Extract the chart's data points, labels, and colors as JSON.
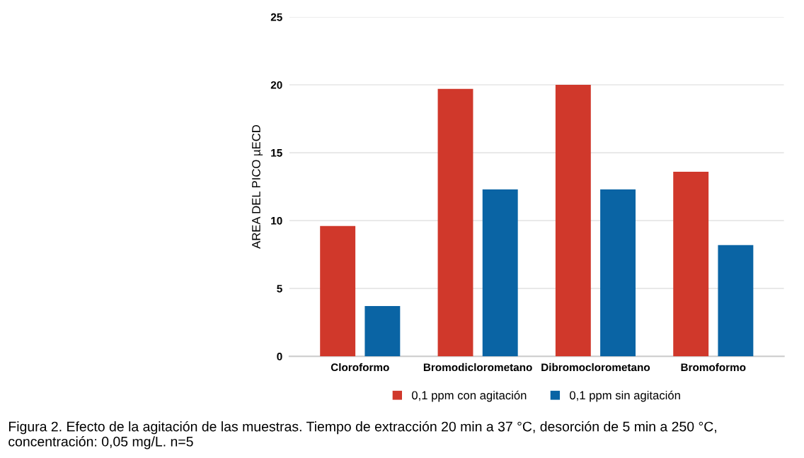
{
  "chart_data": {
    "type": "bar",
    "ylabel": "AREA DEL PICO µECD",
    "categories": [
      "Cloroformo",
      "Bromodiclorometano",
      "Dibromoclorometano",
      "Bromoformo"
    ],
    "series": [
      {
        "name": "0,1 ppm con agitación",
        "color": "#d0382b",
        "values": [
          9.6,
          19.7,
          20.0,
          13.6
        ]
      },
      {
        "name": "0,1 ppm sin agitación",
        "color": "#0a64a4",
        "values": [
          3.7,
          12.3,
          12.3,
          8.2
        ]
      }
    ],
    "ylim": [
      0,
      25
    ],
    "yticks": [
      0,
      5,
      10,
      15,
      20,
      25
    ],
    "grid": "y",
    "legend": "bottom",
    "annotations": [
      "Figura 2. Efecto de la agitación de las muestras. Tiempo de extracción 20 min a 37 °C, desorción de 5 min a 250 °C, concentración: 0,05 mg/L. n=5"
    ]
  }
}
